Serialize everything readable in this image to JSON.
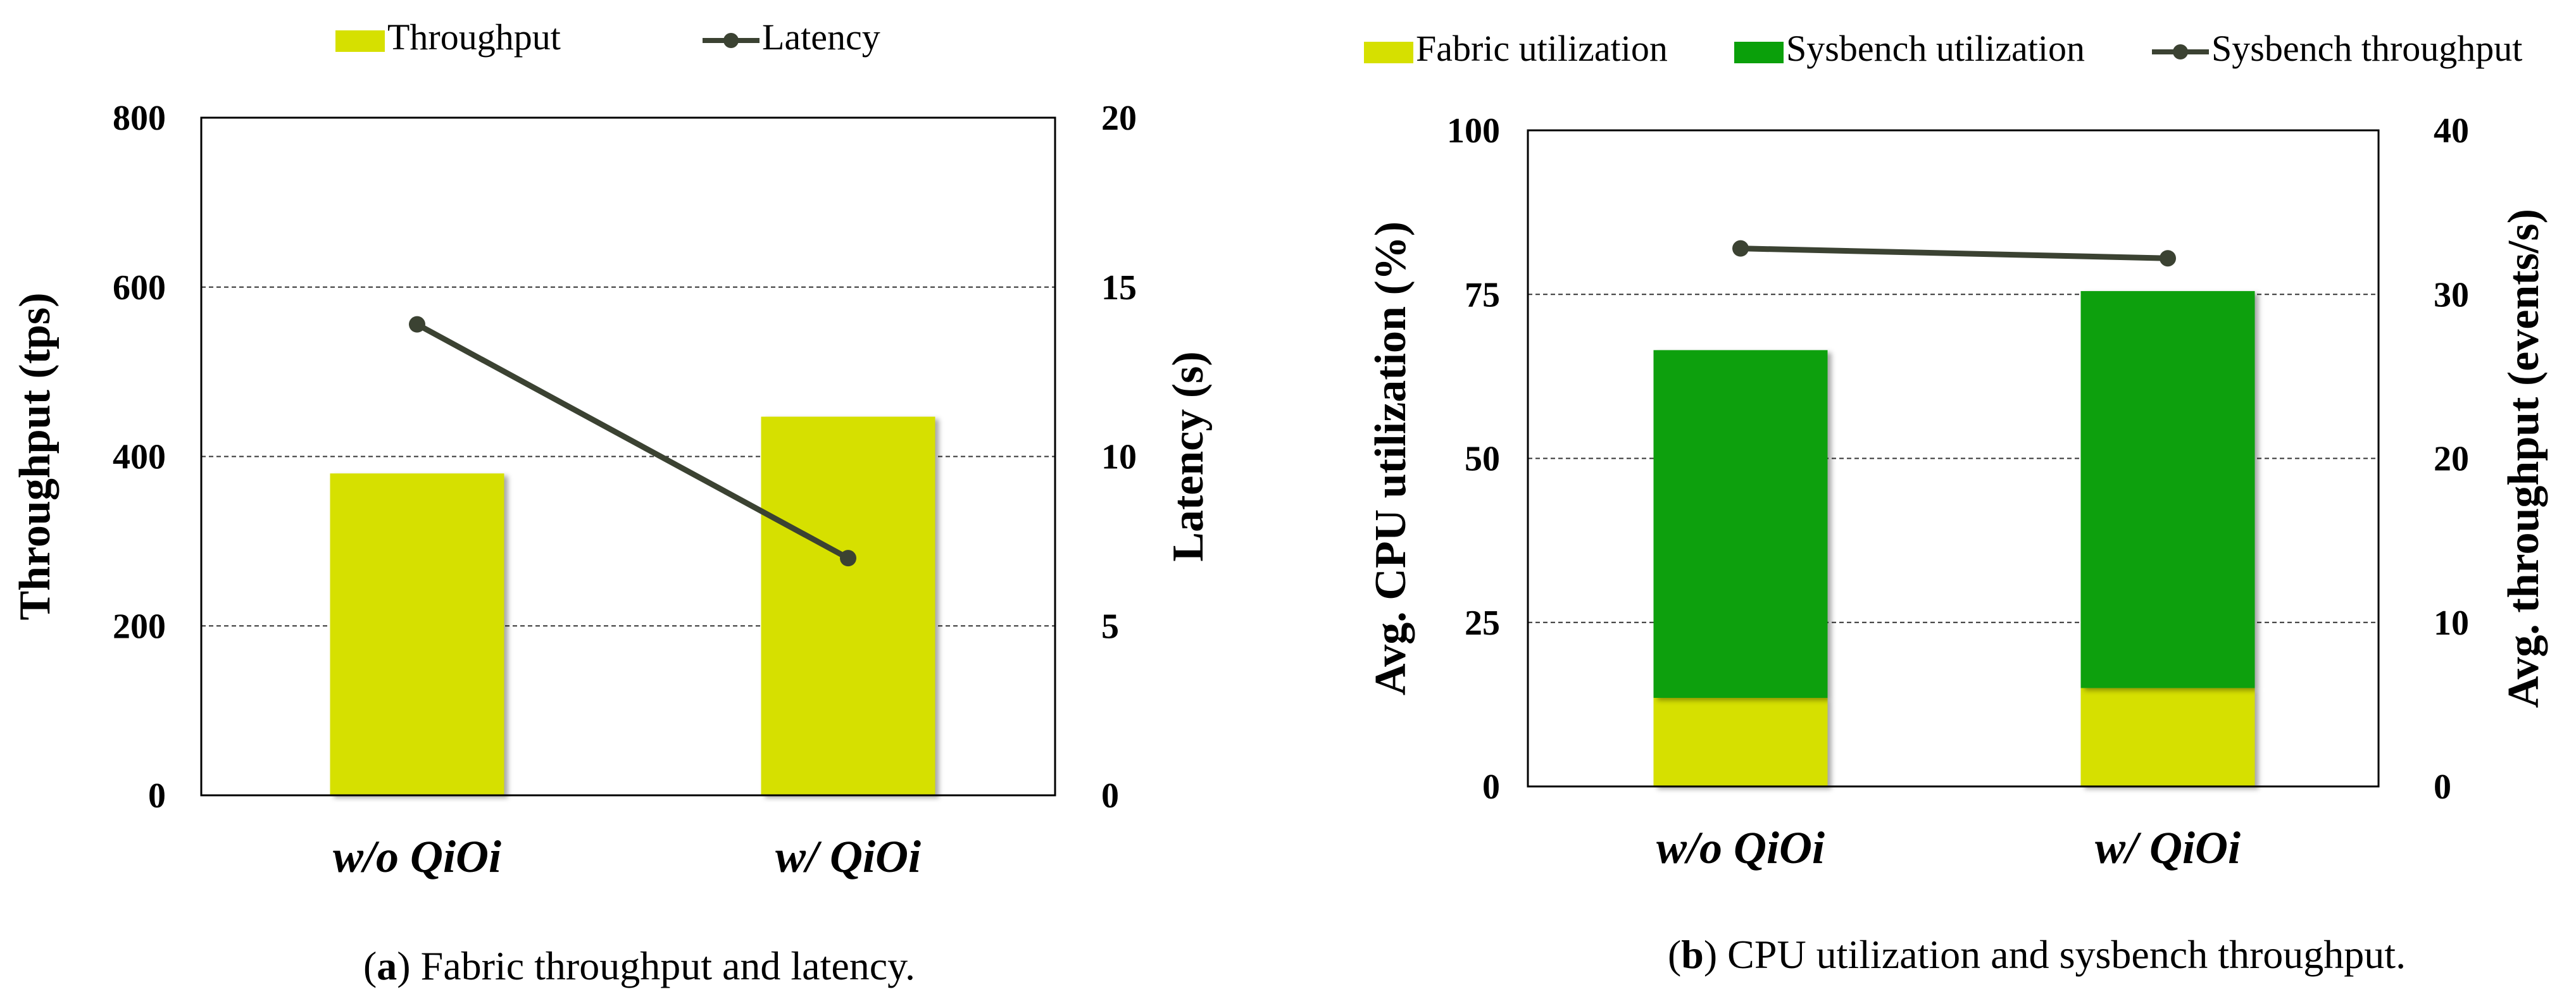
{
  "colors": {
    "fabric": "#d6e000",
    "sysbench": "#0aa00a",
    "line": "#3b4232",
    "grid": "#333333",
    "axis": "#000000"
  },
  "chart_data": [
    {
      "id": "a",
      "type": "bar",
      "caption_letter": "a",
      "caption_text": " Fabric throughput and latency.",
      "categories": [
        "w/o QiOi",
        "w/ QiOi"
      ],
      "series": [
        {
          "name": "Throughput",
          "kind": "bar",
          "axis": "left",
          "values": [
            380,
            447
          ]
        },
        {
          "name": "Latency",
          "kind": "line",
          "axis": "right",
          "values": [
            13.9,
            7.0
          ]
        }
      ],
      "ylabel": "Throughput (tps)",
      "y2label": "Latency  (s)",
      "ylim": [
        0,
        800
      ],
      "y2lim": [
        0,
        20
      ],
      "yticks": [
        "0",
        "200",
        "400",
        "600",
        "800"
      ],
      "y2ticks": [
        "0",
        "5",
        "10",
        "15",
        "20"
      ],
      "grid": true,
      "legend": "top-center"
    },
    {
      "id": "b",
      "type": "bar",
      "caption_letter": "b",
      "caption_text": " CPU utilization and sysbench throughput.",
      "categories": [
        "w/o QiOi",
        "w/ QiOi"
      ],
      "series": [
        {
          "name": "Fabric utilization",
          "kind": "bar",
          "axis": "left",
          "values": [
            13.5,
            15.0
          ]
        },
        {
          "name": "Sysbench utilization",
          "kind": "bar",
          "axis": "left",
          "stacked": true,
          "values": [
            53.0,
            60.5
          ]
        },
        {
          "name": "Sysbench throughput",
          "kind": "line",
          "axis": "right",
          "values": [
            32.8,
            32.2
          ]
        }
      ],
      "ylabel": "Avg. CPU utilization (%)",
      "y2label": "Avg. throughput (events/s)",
      "ylim": [
        0,
        100
      ],
      "y2lim": [
        0,
        40
      ],
      "yticks": [
        "0",
        "25",
        "50",
        "75",
        "100"
      ],
      "y2ticks": [
        "0",
        "10",
        "20",
        "30",
        "40"
      ],
      "grid": true,
      "legend": "top-center"
    }
  ]
}
